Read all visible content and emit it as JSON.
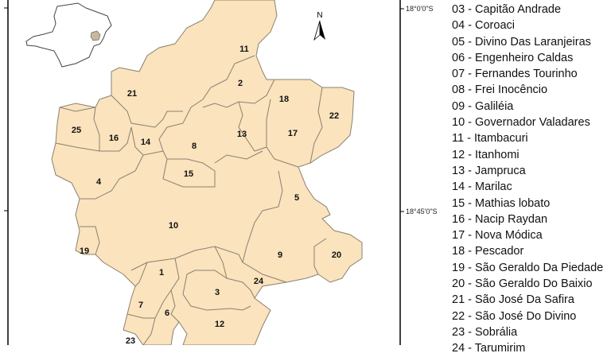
{
  "map": {
    "fill_color": "#fae3bd",
    "border_color": "#8a8070",
    "north_label": "N",
    "lat_labels": [
      "18°0'0\"S",
      "18°45'0\"S"
    ],
    "municipality_labels": [
      "11",
      "2",
      "18",
      "22",
      "21",
      "25",
      "16",
      "14",
      "8",
      "13",
      "17",
      "15",
      "4",
      "5",
      "10",
      "19",
      "9",
      "20",
      "1",
      "24",
      "3",
      "7",
      "6",
      "12",
      "23"
    ]
  },
  "inset": {
    "state_fill": "#ffffff",
    "highlight_fill": "#c9b89a"
  },
  "legend": {
    "items": [
      "03 - Capitão Andrade",
      "04 - Coroaci",
      "05 - Divino Das Laranjeiras",
      "06 - Engenheiro Caldas",
      "07 - Fernandes Tourinho",
      "08 - Frei Inocêncio",
      "09 - Galiléia",
      "10 - Governador Valadares",
      "11 - Itambacuri",
      "12 - Itanhomi",
      "13 - Jampruca",
      "14 - Marilac",
      "15 - Mathias lobato",
      "16 - Nacip Raydan",
      "17 - Nova Módica",
      "18 - Pescador",
      "19 - São Geraldo Da Piedade",
      "20 - São Geraldo Do Baixio",
      "21 - São José Da Safira",
      "22 - São José Do Divino",
      "23 - Sobrália",
      "24 - Tarumirim"
    ]
  }
}
